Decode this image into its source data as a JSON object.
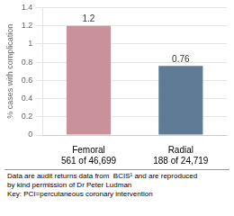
{
  "chart_data": {
    "type": "bar",
    "categories": [
      "Femoral",
      "Radial"
    ],
    "subcategories": [
      "561 of 46,699",
      "188 of 24,719"
    ],
    "values": [
      1.2,
      0.76
    ],
    "colors": [
      "#c9929a",
      "#607b96"
    ],
    "ylabel": "% cases with complication",
    "ylim": [
      0,
      1.4
    ],
    "yticks": [
      0,
      0.2,
      0.4,
      0.6,
      0.8,
      1,
      1.2,
      1.4
    ],
    "data_labels": true,
    "grid": true,
    "annotations": [
      "Data are audit returns data from  BCIS¹ and are reproduced",
      "by kind permission of Dr Peter Ludman",
      "Key: PCI=percutaneous coronary intervention"
    ]
  }
}
